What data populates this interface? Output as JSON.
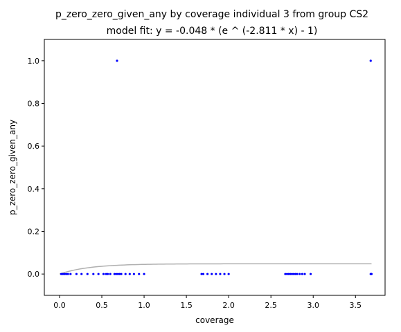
{
  "chart_data": {
    "type": "scatter",
    "title": "p_zero_zero_given_any by coverage individual 3 from group CS2",
    "subtitle": "model fit: y = -0.048 * (e ^ (-2.811 * x) - 1)",
    "xlabel": "coverage",
    "ylabel": "p_zero_zero_given_any",
    "xlim": [
      -0.18,
      3.85
    ],
    "ylim": [
      -0.1,
      1.1
    ],
    "xticks": [
      0.0,
      0.5,
      1.0,
      1.5,
      2.0,
      2.5,
      3.0,
      3.5
    ],
    "xtick_labels": [
      "0.0",
      "0.5",
      "1.0",
      "1.5",
      "2.0",
      "2.5",
      "3.0",
      "3.5"
    ],
    "yticks": [
      0.0,
      0.2,
      0.4,
      0.6,
      0.8,
      1.0
    ],
    "ytick_labels": [
      "0.0",
      "0.2",
      "0.4",
      "0.6",
      "0.8",
      "1.0"
    ],
    "grid": false,
    "legend": "none",
    "series": [
      {
        "kind": "scatter",
        "color": "#0000ff",
        "points": [
          [
            0.02,
            0
          ],
          [
            0.04,
            0
          ],
          [
            0.06,
            0
          ],
          [
            0.08,
            0
          ],
          [
            0.1,
            0
          ],
          [
            0.13,
            0
          ],
          [
            0.2,
            0
          ],
          [
            0.26,
            0
          ],
          [
            0.33,
            0
          ],
          [
            0.4,
            0
          ],
          [
            0.46,
            0
          ],
          [
            0.52,
            0
          ],
          [
            0.55,
            0
          ],
          [
            0.57,
            0
          ],
          [
            0.6,
            0
          ],
          [
            0.65,
            0
          ],
          [
            0.67,
            0
          ],
          [
            0.69,
            0
          ],
          [
            0.71,
            0
          ],
          [
            0.73,
            0
          ],
          [
            0.78,
            0
          ],
          [
            0.83,
            0
          ],
          [
            0.88,
            0
          ],
          [
            0.94,
            0
          ],
          [
            1.0,
            0
          ],
          [
            0.68,
            1.0
          ],
          [
            1.68,
            0
          ],
          [
            1.7,
            0
          ],
          [
            1.75,
            0
          ],
          [
            1.8,
            0
          ],
          [
            1.85,
            0
          ],
          [
            1.9,
            0
          ],
          [
            1.95,
            0
          ],
          [
            2.0,
            0
          ],
          [
            2.67,
            0
          ],
          [
            2.69,
            0
          ],
          [
            2.71,
            0
          ],
          [
            2.73,
            0
          ],
          [
            2.75,
            0
          ],
          [
            2.77,
            0
          ],
          [
            2.79,
            0
          ],
          [
            2.81,
            0
          ],
          [
            2.84,
            0
          ],
          [
            2.87,
            0
          ],
          [
            2.9,
            0
          ],
          [
            2.97,
            0
          ],
          [
            3.68,
            0
          ],
          [
            3.685,
            0
          ],
          [
            3.69,
            0
          ],
          [
            3.68,
            1.0
          ]
        ]
      },
      {
        "kind": "line",
        "color": "#b0b0b0",
        "model": {
          "a": -0.048,
          "b": -2.811
        },
        "x_range": [
          0.0,
          3.69
        ]
      }
    ]
  }
}
